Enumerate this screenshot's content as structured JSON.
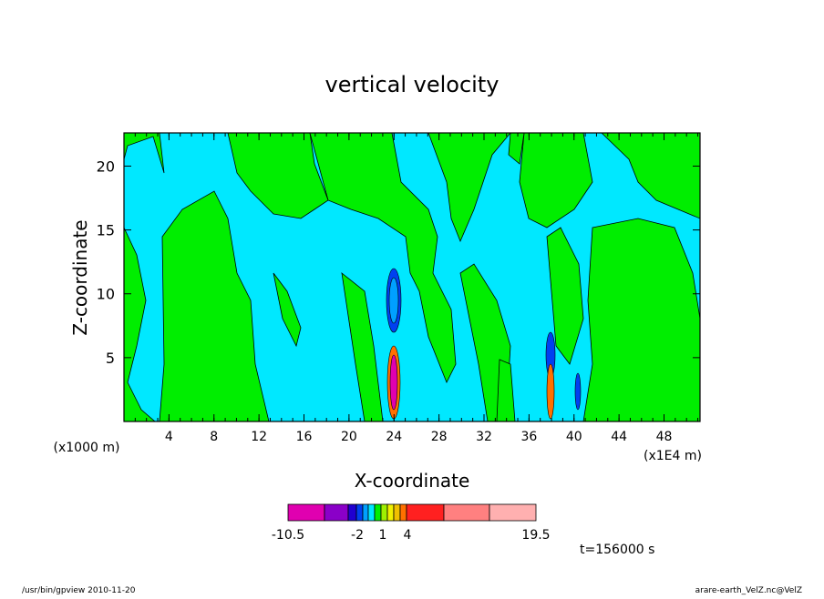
{
  "chart_data": {
    "type": "contour",
    "title": "vertical velocity",
    "x_label": "X-coordinate",
    "y_label": "Z-coordinate",
    "x_unit_left": "(x1000 m)",
    "x_unit_right": "(x1E4 m)",
    "xlim": [
      0,
      51.2
    ],
    "xticks": [
      4,
      8,
      12,
      16,
      20,
      24,
      28,
      32,
      36,
      40,
      44,
      48
    ],
    "ylim": [
      0,
      22.6
    ],
    "yticks": [
      5,
      10,
      15,
      20
    ],
    "background_color": "#00e8ff",
    "contour_color": "#00ee00",
    "colorbar": {
      "colors": [
        "#e000b0",
        "#8a00c8",
        "#2000d0",
        "#0040f0",
        "#00a0ff",
        "#00e8ff",
        "#00ee00",
        "#a0f000",
        "#f0f000",
        "#f0c000",
        "#ff7000",
        "#ff2020",
        "#ff8080",
        "#ffb0b0"
      ],
      "levels": [
        -10.5,
        -2,
        1,
        4,
        19.5
      ]
    },
    "time_label": "t=156000 s",
    "footer_left": "/usr/bin/gpview  2010-11-20",
    "footer_right": "arare-earth_VelZ.nc@VelZ"
  }
}
